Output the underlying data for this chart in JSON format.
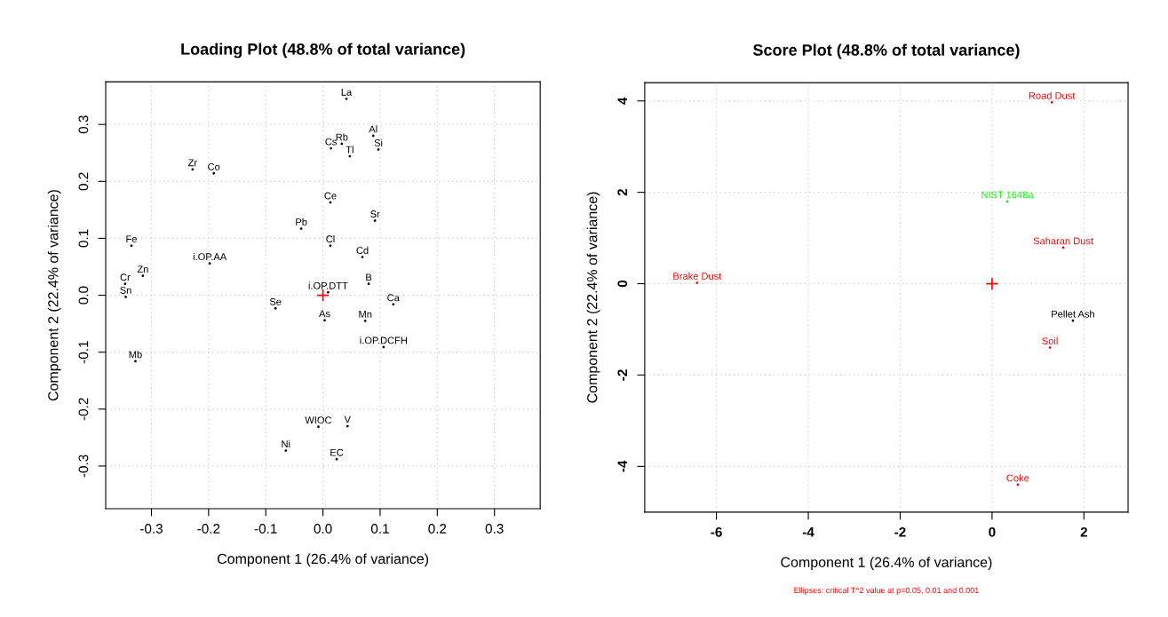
{
  "chart_data": [
    {
      "type": "scatter",
      "title": "Loading Plot (48.8% of total variance)",
      "xlabel": "Component 1 (26.4% of variance)",
      "ylabel": "Component 2 (22.4% of variance)",
      "xlim": [
        -0.38,
        0.38
      ],
      "ylim": [
        -0.375,
        0.375
      ],
      "xticks": [
        -0.3,
        -0.2,
        -0.1,
        {
          "value": 0,
          "label": "0.0"
        },
        0.1,
        0.2,
        0.3
      ],
      "yticks": [
        -0.3,
        -0.2,
        -0.1,
        {
          "value": 0,
          "label": "0.0"
        },
        0.1,
        0.2,
        0.3
      ],
      "grid": true,
      "marker": "none",
      "series": [
        {
          "name": "La",
          "color": "#000000",
          "x": [
            0.041
          ],
          "values": [
            0.345
          ]
        },
        {
          "name": "Cs",
          "color": "#000000",
          "x": [
            0.014
          ],
          "values": [
            0.258
          ]
        },
        {
          "name": "Rb",
          "color": "#000000",
          "x": [
            0.033
          ],
          "values": [
            0.266
          ]
        },
        {
          "name": "Tl",
          "color": "#000000",
          "x": [
            0.047
          ],
          "values": [
            0.244
          ]
        },
        {
          "name": "Al",
          "color": "#000000",
          "x": [
            0.088
          ],
          "values": [
            0.28
          ]
        },
        {
          "name": "Si",
          "color": "#000000",
          "x": [
            0.097
          ],
          "values": [
            0.256
          ]
        },
        {
          "name": "Zr",
          "color": "#000000",
          "x": [
            -0.228
          ],
          "values": [
            0.221
          ]
        },
        {
          "name": "Co",
          "color": "#000000",
          "x": [
            -0.191
          ],
          "values": [
            0.214
          ]
        },
        {
          "name": "Ce",
          "color": "#000000",
          "x": [
            0.013
          ],
          "values": [
            0.163
          ]
        },
        {
          "name": "Sr",
          "color": "#000000",
          "x": [
            0.091
          ],
          "values": [
            0.131
          ]
        },
        {
          "name": "Pb",
          "color": "#000000",
          "x": [
            -0.038
          ],
          "values": [
            0.117
          ]
        },
        {
          "name": "Cl",
          "color": "#000000",
          "x": [
            0.013
          ],
          "values": [
            0.087
          ]
        },
        {
          "name": "Cd",
          "color": "#000000",
          "x": [
            0.069
          ],
          "values": [
            0.067
          ]
        },
        {
          "name": "Fe",
          "color": "#000000",
          "x": [
            -0.335
          ],
          "values": [
            0.087
          ]
        },
        {
          "name": "i.OP.AA",
          "color": "#000000",
          "x": [
            -0.198
          ],
          "values": [
            0.056
          ]
        },
        {
          "name": "Zn",
          "color": "#000000",
          "x": [
            -0.315
          ],
          "values": [
            0.034
          ]
        },
        {
          "name": "Cr",
          "color": "#000000",
          "x": [
            -0.346
          ],
          "values": [
            0.02
          ]
        },
        {
          "name": "Sn",
          "color": "#000000",
          "x": [
            -0.345
          ],
          "values": [
            -0.003
          ]
        },
        {
          "name": "B",
          "color": "#000000",
          "x": [
            0.08
          ],
          "values": [
            0.02
          ]
        },
        {
          "name": "i.OP.DTT",
          "color": "#000000",
          "x": [
            0.009
          ],
          "values": [
            0.005
          ]
        },
        {
          "name": "Ca",
          "color": "#000000",
          "x": [
            0.123
          ],
          "values": [
            -0.016
          ]
        },
        {
          "name": "Se",
          "color": "#000000",
          "x": [
            -0.083
          ],
          "values": [
            -0.023
          ]
        },
        {
          "name": "As",
          "color": "#000000",
          "x": [
            0.003
          ],
          "values": [
            -0.044
          ]
        },
        {
          "name": "Mn",
          "color": "#000000",
          "x": [
            0.074
          ],
          "values": [
            -0.045
          ]
        },
        {
          "name": "i.OP.DCFH",
          "color": "#000000",
          "x": [
            0.106
          ],
          "values": [
            -0.091
          ]
        },
        {
          "name": "Mb",
          "color": "#000000",
          "x": [
            -0.328
          ],
          "values": [
            -0.116
          ]
        },
        {
          "name": "WIOC",
          "color": "#000000",
          "x": [
            -0.008
          ],
          "values": [
            -0.231
          ]
        },
        {
          "name": "V",
          "color": "#000000",
          "x": [
            0.043
          ],
          "values": [
            -0.23
          ]
        },
        {
          "name": "Ni",
          "color": "#000000",
          "x": [
            -0.065
          ],
          "values": [
            -0.273
          ]
        },
        {
          "name": "EC",
          "color": "#000000",
          "x": [
            0.024
          ],
          "values": [
            -0.288
          ]
        },
        {
          "color": "#ff0000",
          "marker": "cross",
          "x": [
            0
          ],
          "values": [
            0
          ]
        }
      ]
    },
    {
      "type": "scatter",
      "title": "Score Plot (48.8% of total variance)",
      "xlabel": "Component 1 (26.4% of variance)",
      "ylabel": "Component 2 (22.4% of variance)",
      "xlim": [
        -7.56,
        2.96
      ],
      "ylim": [
        -5.0,
        4.4
      ],
      "xticks": [
        -6,
        -4,
        -2,
        0,
        2
      ],
      "yticks": [
        -4,
        -2,
        0,
        2,
        4
      ],
      "grid": true,
      "marker": "none",
      "annotations": [
        "Ellipses: critical T^2 value at p=0.05, 0.01 and 0.001"
      ],
      "series": [
        {
          "name": "Road Dust",
          "color": "#ff0000",
          "x": [
            1.3
          ],
          "values": [
            3.97
          ]
        },
        {
          "name": "NIST 1648a",
          "color": "#00ff00",
          "x": [
            0.33
          ],
          "values": [
            1.8
          ]
        },
        {
          "name": "Saharan Dust",
          "color": "#ff0000",
          "x": [
            1.55
          ],
          "values": [
            0.79
          ]
        },
        {
          "name": "Brake Dust",
          "color": "#ff0000",
          "x": [
            -6.42
          ],
          "values": [
            0.02
          ]
        },
        {
          "name": "Pellet Ash",
          "color": "#000000",
          "x": [
            1.76
          ],
          "values": [
            -0.81
          ]
        },
        {
          "name": "Soil",
          "color": "#ff0000",
          "x": [
            1.26
          ],
          "values": [
            -1.4
          ]
        },
        {
          "name": "Coke",
          "color": "#ff0000",
          "x": [
            0.56
          ],
          "values": [
            -4.4
          ]
        },
        {
          "color": "#ff0000",
          "marker": "cross",
          "x": [
            0
          ],
          "values": [
            0
          ]
        }
      ]
    }
  ]
}
